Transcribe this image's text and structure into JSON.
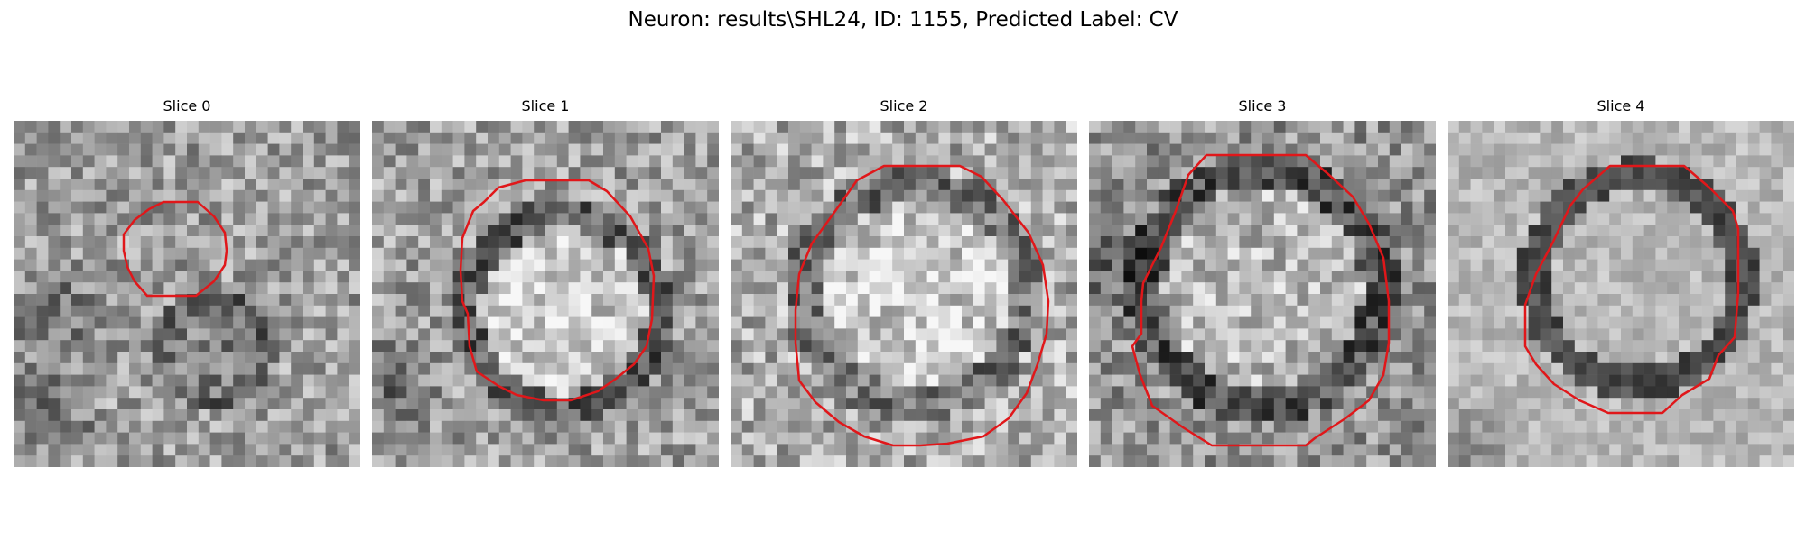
{
  "figure": {
    "suptitle": "Neuron: results\\SHL24, ID: 1155, Predicted Label: CV"
  },
  "contour_color": "#e0171a",
  "panels": [
    {
      "title": "Slice 0"
    },
    {
      "title": "Slice 1"
    },
    {
      "title": "Slice 2"
    },
    {
      "title": "Slice 3"
    },
    {
      "title": "Slice 4"
    }
  ]
}
